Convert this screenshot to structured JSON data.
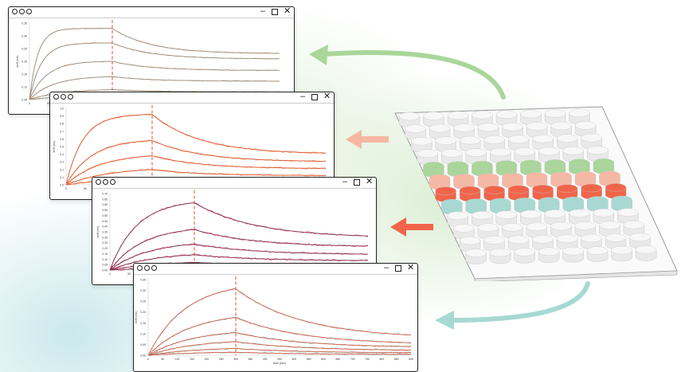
{
  "colors": {
    "green": "#a9d69a",
    "salmon": "#f6b8a4",
    "red": "#f0654a",
    "teal": "#a7d9d2",
    "plate": "#ececec"
  },
  "windows": [
    {
      "id": "w1",
      "yaxis_label": "shift (nm)",
      "xaxis_label": "",
      "yticks": [
        "0.35",
        "0.30",
        "0.25",
        "0.20",
        "0.15",
        "0.10",
        "0.05"
      ],
      "xticks": [
        "0",
        "50"
      ],
      "fit_color": "#8a8a8a",
      "data_color": "#f2a45a",
      "marker_color": "#e8603a"
    },
    {
      "id": "w2",
      "yaxis_label": "shift (nm)",
      "xaxis_label": "",
      "yticks": [
        "1.0",
        "0.9",
        "0.8",
        "0.7",
        "0.6",
        "0.5",
        "0.4",
        "0.3",
        "0.2",
        "0.1",
        "0.0"
      ],
      "xticks": [
        "0",
        "50"
      ],
      "fit_color": "#d9482e",
      "data_color": "#f2a45a",
      "marker_color": "#e8603a"
    },
    {
      "id": "w3",
      "yaxis_label": "shift (nm)",
      "xaxis_label": "",
      "yticks": [
        "0.70",
        "0.65",
        "0.60",
        "0.55",
        "0.50",
        "0.45",
        "0.40",
        "0.35",
        "0.30",
        "0.25",
        "0.20",
        "0.15",
        "0.10",
        "0.05",
        "0.00"
      ],
      "xticks": [
        "0",
        "50",
        "100"
      ],
      "fit_color": "#7a2a3a",
      "data_color": "#d94b8a",
      "marker_color": "#e8603a"
    },
    {
      "id": "w4",
      "yaxis_label": "shift (nm)",
      "xaxis_label": "time (sec)",
      "yticks": [
        "0.35",
        "0.30",
        "0.25",
        "0.20",
        "0.15",
        "0.10",
        "0.05",
        "0.00"
      ],
      "xticks": [
        "0",
        "50",
        "100",
        "150",
        "200",
        "250",
        "300",
        "350",
        "400",
        "450",
        "500",
        "550",
        "600",
        "650",
        "700",
        "750",
        "800",
        "850",
        "900"
      ],
      "fit_color": "#d9482e",
      "data_color": "#8fd3cf",
      "marker_color": "#e8603a"
    }
  ]
}
